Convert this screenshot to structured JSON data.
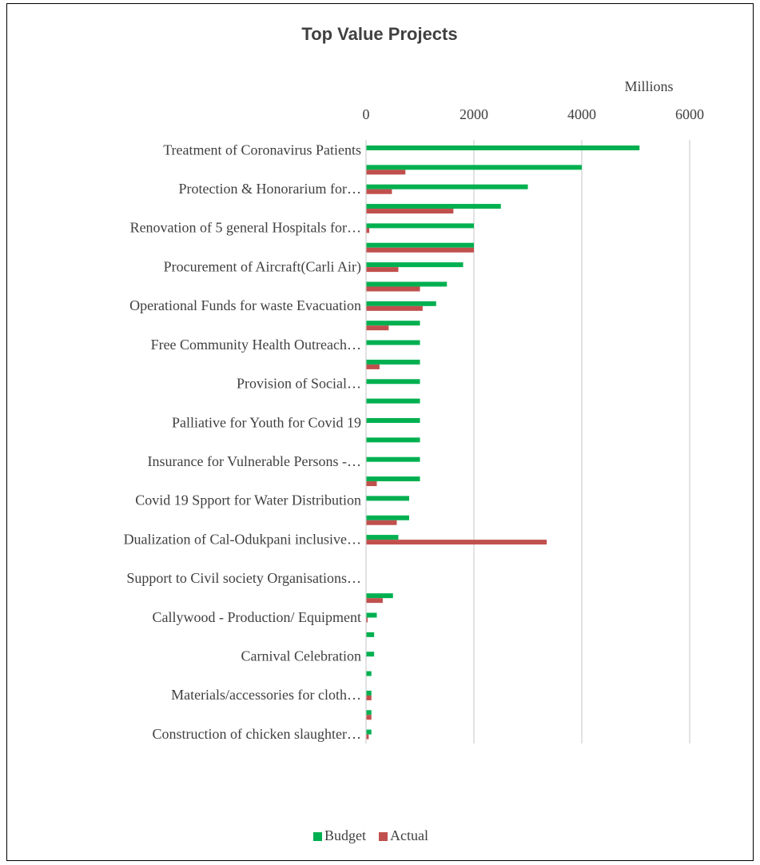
{
  "chart_data": {
    "type": "hbar",
    "title": "Top Value Projects",
    "x_axis_label": "Millions",
    "categories": [
      "Treatment of Coronavirus Patients",
      null,
      "Protection & Honorarium for…",
      null,
      "Renovation of 5 general Hospitals for…",
      null,
      "Procurement of Aircraft(Carli Air)",
      null,
      "Operational Funds for waste Evacuation",
      null,
      "Free Community Health Outreach…",
      null,
      "Provision of Social…",
      null,
      "Palliative for Youth for Covid 19",
      null,
      "Insurance for Vulnerable Persons -…",
      null,
      "Covid 19 Spport for Water Distribution",
      null,
      "Dualization of Cal-Odukpani inclusive…",
      null,
      "Support to Civil society Organisations…",
      null,
      "Callywood - Production/ Equipment",
      null,
      "Carnival Celebration",
      null,
      "Materials/accessories for cloth…",
      null,
      "Construction of chicken slaughter…"
    ],
    "series": [
      {
        "name": "Budget",
        "color": "#00b050",
        "values": [
          5070,
          4000,
          3000,
          2500,
          2000,
          2000,
          1800,
          1500,
          1300,
          1000,
          1000,
          1000,
          1000,
          1000,
          1000,
          1000,
          1000,
          1000,
          800,
          800,
          600,
          0,
          0,
          500,
          200,
          150,
          150,
          100,
          100,
          100,
          100
        ]
      },
      {
        "name": "Actual",
        "color": "#c0504d",
        "values": [
          0,
          730,
          480,
          1620,
          60,
          2000,
          600,
          1000,
          1050,
          420,
          0,
          250,
          0,
          0,
          0,
          0,
          0,
          200,
          0,
          570,
          3350,
          0,
          0,
          310,
          30,
          0,
          0,
          0,
          100,
          100,
          50
        ]
      }
    ],
    "xlim": [
      0,
      6000
    ],
    "xticks": [
      0,
      2000,
      4000,
      6000
    ],
    "grid": true,
    "legend": "bottom"
  }
}
